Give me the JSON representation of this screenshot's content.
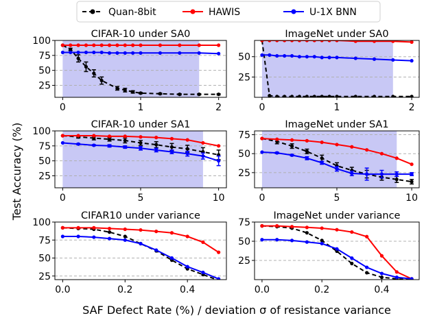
{
  "figure": {
    "ylabel": "Test Accuracy (%)",
    "xlabel": "SAF Defect Rate (%) / deviation σ of resistance variance",
    "legend": [
      {
        "name": "Quan-8bit",
        "color": "#000000",
        "style": "dashed"
      },
      {
        "name": "HAWIS",
        "color": "#ff0000",
        "style": "solid"
      },
      {
        "name": "U-1X BNN",
        "color": "#0000ff",
        "style": "solid"
      }
    ]
  },
  "chart_data": [
    {
      "type": "line",
      "title": "CIFAR-10 under SA0",
      "xlim": [
        -0.1,
        2.1
      ],
      "ylim": [
        5,
        100
      ],
      "xticks": [
        0,
        1,
        2
      ],
      "xtick_labels": [
        "0",
        "1",
        "2"
      ],
      "yticks": [
        25,
        50,
        75,
        100
      ],
      "ytick_labels": [
        "25",
        "50",
        "75",
        "100"
      ],
      "shade": [
        0,
        1.75
      ],
      "series": [
        {
          "name": "Quan-8bit",
          "x": [
            0,
            0.1,
            0.2,
            0.3,
            0.4,
            0.5,
            0.7,
            0.8,
            0.9,
            1.0,
            1.25,
            1.5,
            1.75,
            2.0
          ],
          "y": [
            92,
            85,
            70,
            56,
            45,
            33,
            20,
            17,
            14,
            12,
            11,
            10,
            10,
            10
          ],
          "err": [
            0,
            2,
            6,
            8,
            6,
            6,
            3,
            3,
            2,
            1,
            1,
            1,
            1,
            1
          ]
        },
        {
          "name": "HAWIS",
          "x": [
            0,
            0.1,
            0.2,
            0.3,
            0.4,
            0.5,
            0.6,
            0.7,
            0.8,
            0.9,
            1.0,
            1.25,
            1.5,
            1.75,
            2.0
          ],
          "y": [
            92,
            92,
            92,
            92,
            92,
            92,
            92,
            92,
            92,
            92,
            92,
            92,
            92,
            92,
            92
          ]
        },
        {
          "name": "U-1X BNN",
          "x": [
            0,
            0.1,
            0.2,
            0.3,
            0.4,
            0.5,
            0.6,
            0.7,
            0.8,
            0.9,
            1.0,
            1.25,
            1.5,
            1.75,
            2.0
          ],
          "y": [
            80,
            80,
            80,
            80,
            80,
            80,
            79,
            79,
            79,
            79,
            79,
            79,
            79,
            79,
            78
          ]
        }
      ]
    },
    {
      "type": "line",
      "title": "ImageNet under SA0",
      "xlim": [
        -0.1,
        2.1
      ],
      "ylim": [
        0,
        70
      ],
      "xticks": [
        0,
        1,
        2
      ],
      "xtick_labels": [
        "0",
        "1",
        "2"
      ],
      "yticks": [
        25,
        50,
        75
      ],
      "ytick_labels": [
        "25",
        "50",
        "75"
      ],
      "shade": [
        0,
        1.75
      ],
      "series": [
        {
          "name": "Quan-8bit",
          "x": [
            0,
            0.1,
            0.2,
            0.3,
            0.4,
            0.5,
            0.6,
            0.7,
            0.8,
            0.9,
            1.0,
            1.25,
            1.5,
            1.75,
            2.0
          ],
          "y": [
            70,
            2,
            1,
            1,
            1,
            1,
            1,
            1,
            1,
            1,
            1,
            1,
            1,
            1,
            1
          ]
        },
        {
          "name": "HAWIS",
          "x": [
            0,
            0.1,
            0.2,
            0.3,
            0.4,
            0.5,
            0.6,
            0.7,
            0.8,
            0.9,
            1.0,
            1.25,
            1.5,
            1.75,
            2.0
          ],
          "y": [
            70,
            70,
            70,
            70,
            70,
            70,
            70,
            70,
            70,
            70,
            70,
            69,
            69,
            69,
            68
          ]
        },
        {
          "name": "U-1X BNN",
          "x": [
            0,
            0.1,
            0.2,
            0.3,
            0.4,
            0.5,
            0.6,
            0.7,
            0.8,
            0.9,
            1.0,
            1.25,
            1.5,
            1.75,
            2.0
          ],
          "y": [
            52,
            52,
            51,
            51,
            51,
            50,
            50,
            50,
            49,
            49,
            49,
            48,
            47,
            46,
            45
          ]
        }
      ]
    },
    {
      "type": "line",
      "title": "CIFAR-10 under SA1",
      "xlim": [
        -0.5,
        10.5
      ],
      "ylim": [
        5,
        100
      ],
      "xticks": [
        0,
        5,
        10
      ],
      "xtick_labels": [
        "0",
        "5",
        "10"
      ],
      "yticks": [
        25,
        50,
        75,
        100
      ],
      "ytick_labels": [
        "25",
        "50",
        "75",
        "100"
      ],
      "shade": [
        0,
        9
      ],
      "series": [
        {
          "name": "Quan-8bit",
          "x": [
            0,
            1,
            2,
            3,
            4,
            5,
            6,
            7,
            8,
            9,
            10
          ],
          "y": [
            92,
            90,
            88,
            86,
            84,
            80,
            77,
            73,
            70,
            65,
            60
          ],
          "err": [
            0,
            2,
            3,
            3,
            4,
            4,
            5,
            6,
            6,
            7,
            8
          ]
        },
        {
          "name": "HAWIS",
          "x": [
            0,
            1,
            2,
            3,
            4,
            5,
            6,
            7,
            8,
            9,
            10
          ],
          "y": [
            92,
            92,
            92,
            91,
            91,
            90,
            89,
            87,
            85,
            80,
            75
          ]
        },
        {
          "name": "U-1X BNN",
          "x": [
            0,
            1,
            2,
            3,
            4,
            5,
            6,
            7,
            8,
            9,
            10
          ],
          "y": [
            80,
            78,
            76,
            75,
            73,
            71,
            68,
            65,
            62,
            58,
            50
          ],
          "err": [
            0,
            1,
            1,
            2,
            2,
            3,
            3,
            3,
            4,
            5,
            8
          ]
        }
      ]
    },
    {
      "type": "line",
      "title": "ImageNet under SA1",
      "xlim": [
        -0.5,
        10.5
      ],
      "ylim": [
        5,
        80
      ],
      "xticks": [
        0,
        5,
        10
      ],
      "xtick_labels": [
        "0",
        "5",
        "10"
      ],
      "yticks": [
        25,
        50,
        75
      ],
      "ytick_labels": [
        "25",
        "50",
        "75"
      ],
      "shade": [
        0,
        9
      ],
      "series": [
        {
          "name": "Quan-8bit",
          "x": [
            0,
            1,
            2,
            3,
            4,
            5,
            6,
            7,
            8,
            9,
            10
          ],
          "y": [
            70,
            66,
            60,
            53,
            44,
            34,
            28,
            23,
            19,
            16,
            13
          ],
          "err": [
            0,
            3,
            3,
            3,
            4,
            4,
            4,
            5,
            4,
            4,
            3
          ]
        },
        {
          "name": "HAWIS",
          "x": [
            0,
            1,
            2,
            3,
            4,
            5,
            6,
            7,
            8,
            9,
            10
          ],
          "y": [
            70,
            69,
            68,
            67,
            65,
            62,
            59,
            55,
            50,
            44,
            36
          ]
        },
        {
          "name": "U-1X BNN",
          "x": [
            0,
            1,
            2,
            3,
            4,
            5,
            6,
            7,
            8,
            9,
            10
          ],
          "y": [
            52,
            51,
            48,
            44,
            38,
            30,
            24,
            23,
            23,
            23,
            23
          ],
          "err": [
            0,
            1,
            1,
            2,
            2,
            3,
            3,
            8,
            5,
            3,
            2
          ]
        }
      ]
    },
    {
      "type": "line",
      "title": "CIFAR10 under variance",
      "xlim": [
        -0.025,
        0.525
      ],
      "ylim": [
        20,
        100
      ],
      "xticks": [
        0.0,
        0.2,
        0.4
      ],
      "xtick_labels": [
        "0.0",
        "0.2",
        "0.4"
      ],
      "yticks": [
        25,
        50,
        75,
        100
      ],
      "ytick_labels": [
        "25",
        "50",
        "75",
        "100"
      ],
      "series": [
        {
          "name": "Quan-8bit",
          "x": [
            0,
            0.05,
            0.1,
            0.15,
            0.2,
            0.25,
            0.3,
            0.35,
            0.4,
            0.45,
            0.5
          ],
          "y": [
            92,
            91,
            90,
            86,
            80,
            70,
            60,
            47,
            35,
            27,
            19
          ]
        },
        {
          "name": "HAWIS",
          "x": [
            0,
            0.05,
            0.1,
            0.15,
            0.2,
            0.25,
            0.3,
            0.35,
            0.4,
            0.45,
            0.5
          ],
          "y": [
            92,
            92,
            92,
            91,
            90,
            89,
            87,
            85,
            80,
            72,
            58
          ]
        },
        {
          "name": "U-1X BNN",
          "x": [
            0,
            0.05,
            0.1,
            0.15,
            0.2,
            0.25,
            0.3,
            0.35,
            0.4,
            0.45,
            0.5
          ],
          "y": [
            80,
            80,
            79,
            77,
            75,
            70,
            61,
            50,
            38,
            30,
            21
          ]
        }
      ]
    },
    {
      "type": "line",
      "title": "ImageNet under variance",
      "xlim": [
        -0.025,
        0.525
      ],
      "ylim": [
        0,
        75
      ],
      "xticks": [
        0.0,
        0.2,
        0.4
      ],
      "xtick_labels": [
        "0.0",
        "0.2",
        "0.4"
      ],
      "yticks": [
        25,
        50,
        75
      ],
      "ytick_labels": [
        "25",
        "50",
        "75"
      ],
      "series": [
        {
          "name": "Quan-8bit",
          "x": [
            0,
            0.05,
            0.1,
            0.15,
            0.2,
            0.25,
            0.3,
            0.35,
            0.4,
            0.45,
            0.5
          ],
          "y": [
            70,
            69,
            67,
            61,
            51,
            37,
            21,
            9,
            3,
            1,
            0
          ]
        },
        {
          "name": "HAWIS",
          "x": [
            0,
            0.05,
            0.1,
            0.15,
            0.2,
            0.25,
            0.3,
            0.35,
            0.4,
            0.45,
            0.5
          ],
          "y": [
            70,
            70,
            69,
            68,
            67,
            65,
            62,
            56,
            31,
            10,
            1
          ]
        },
        {
          "name": "U-1X BNN",
          "x": [
            0,
            0.05,
            0.1,
            0.15,
            0.2,
            0.25,
            0.3,
            0.35,
            0.4,
            0.45,
            0.5
          ],
          "y": [
            52,
            52,
            51,
            49,
            47,
            40,
            28,
            16,
            8,
            3,
            1
          ]
        }
      ]
    }
  ]
}
